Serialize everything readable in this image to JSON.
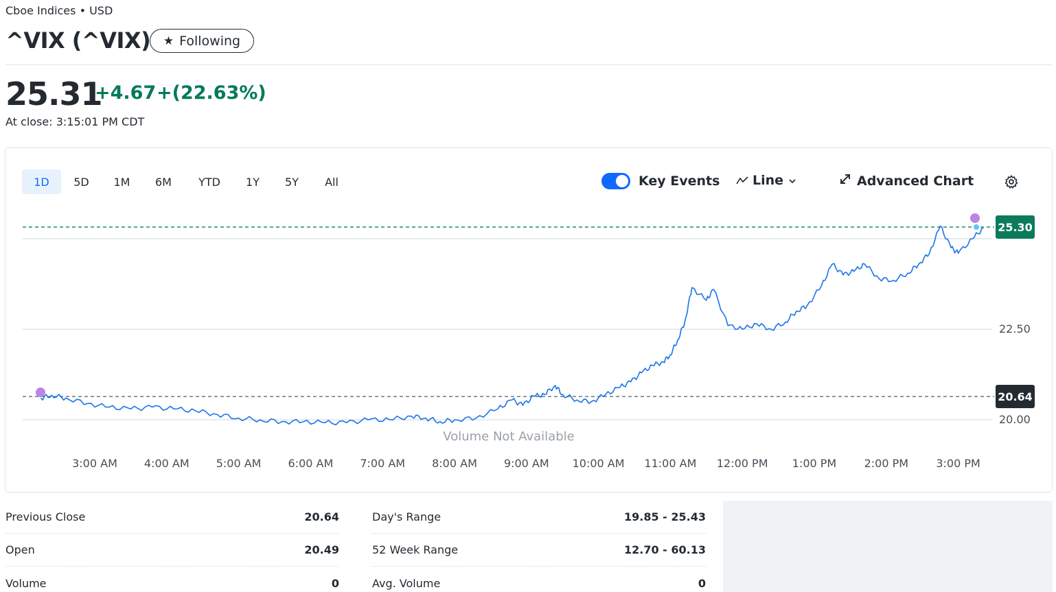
{
  "header": {
    "exchange": "Cboe Indices • USD",
    "title": "^VIX (^VIX)",
    "follow_label": "Following"
  },
  "quote": {
    "price": "25.31",
    "change": "+4.67",
    "change_pct": "+(22.63%)",
    "close_time": "At close: 3:15:01 PM CDT"
  },
  "chart_controls": {
    "ranges": [
      "1D",
      "5D",
      "1M",
      "6M",
      "YTD",
      "1Y",
      "5Y",
      "All"
    ],
    "active_range": "1D",
    "key_events_label": "Key Events",
    "key_events_on": true,
    "chart_type_label": "Line",
    "advanced_label": "Advanced Chart"
  },
  "chart_data": {
    "type": "line",
    "x_ticks": [
      "3:00 AM",
      "4:00 AM",
      "5:00 AM",
      "6:00 AM",
      "7:00 AM",
      "8:00 AM",
      "9:00 AM",
      "10:00 AM",
      "11:00 AM",
      "12:00 PM",
      "1:00 PM",
      "2:00 PM",
      "3:00 PM"
    ],
    "y_ticks": [
      "20.00",
      "22.50"
    ],
    "ylim": [
      19.5,
      25.7
    ],
    "previous_close": 20.64,
    "current_tag": "25.30",
    "previous_close_tag": "20.64",
    "volume_note": "Volume Not Available",
    "series": [
      {
        "x_hours": [
          2.25,
          2.4,
          2.6,
          2.9,
          3.2,
          3.5,
          3.8,
          4.1,
          4.4,
          4.7,
          5.0,
          5.3,
          5.6,
          5.9,
          6.2,
          6.5,
          6.8,
          7.1,
          7.4,
          7.6,
          7.8,
          8.0,
          8.3,
          8.6,
          8.8,
          8.95,
          9.1,
          9.25,
          9.4,
          9.5,
          9.7,
          9.9,
          10.1,
          10.3,
          10.45,
          10.6,
          10.75,
          10.9,
          11.0,
          11.1,
          11.2,
          11.3,
          11.5,
          11.6,
          11.8,
          12.0,
          12.2,
          12.4,
          12.6,
          12.75,
          12.9,
          13.1,
          13.25,
          13.4,
          13.55,
          13.7,
          13.9,
          14.1,
          14.3,
          14.45,
          14.6,
          14.75,
          14.9,
          15.0,
          15.2,
          15.35
        ],
        "values": [
          20.6,
          20.68,
          20.6,
          20.45,
          20.35,
          20.3,
          20.35,
          20.3,
          20.25,
          20.15,
          20.05,
          20.0,
          19.95,
          19.95,
          19.92,
          19.92,
          20.0,
          20.0,
          20.1,
          20.05,
          19.95,
          20.0,
          20.05,
          20.3,
          20.55,
          20.4,
          20.65,
          20.7,
          20.95,
          20.7,
          20.55,
          20.5,
          20.7,
          20.9,
          21.05,
          21.3,
          21.5,
          21.6,
          21.8,
          22.2,
          22.7,
          23.65,
          23.3,
          23.6,
          22.6,
          22.5,
          22.65,
          22.5,
          22.7,
          23.0,
          23.15,
          23.7,
          24.3,
          24.0,
          24.1,
          24.3,
          23.9,
          23.85,
          24.05,
          24.3,
          24.6,
          25.35,
          24.75,
          24.6,
          25.0,
          25.3
        ]
      }
    ]
  },
  "stats": {
    "left": [
      {
        "label": "Previous Close",
        "value": "20.64"
      },
      {
        "label": "Open",
        "value": "20.49"
      },
      {
        "label": "Volume",
        "value": "0"
      }
    ],
    "mid": [
      {
        "label": "Day's Range",
        "value": "19.85 - 25.43"
      },
      {
        "label": "52 Week Range",
        "value": "12.70 - 60.13"
      },
      {
        "label": "Avg. Volume",
        "value": "0"
      }
    ]
  },
  "colors": {
    "positive": "#007a5a",
    "line": "#1a73e8",
    "accent": "#0f69ff",
    "event_dot": "#b06ee0",
    "dark_tag": "#232a31",
    "green_tag": "#0c7b5b"
  },
  "icons": [
    "star-icon",
    "line-chart-icon",
    "chevron-down-icon",
    "expand-icon",
    "gear-icon"
  ]
}
